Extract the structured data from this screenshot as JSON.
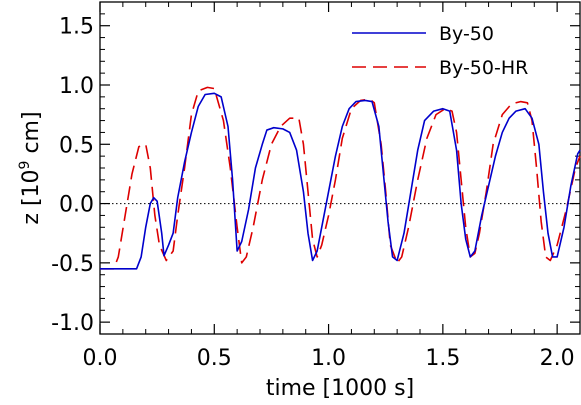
{
  "chart_data": {
    "type": "line",
    "xlabel": "time [1000 s]",
    "ylabel_prefix": "z [10",
    "ylabel_exp": "9",
    "ylabel_suffix": " cm]",
    "xlim": [
      0.0,
      2.1
    ],
    "ylim": [
      -1.1,
      1.7
    ],
    "x_ticks": [
      0.0,
      0.5,
      1.0,
      1.5,
      2.0
    ],
    "x_tick_labels": [
      "0.0",
      "0.5",
      "1.0",
      "1.5",
      "2.0"
    ],
    "y_ticks": [
      -1.0,
      -0.5,
      0.0,
      0.5,
      1.0,
      1.5
    ],
    "y_tick_labels": [
      "-1.0",
      "-0.5",
      "0.0",
      "0.5",
      "1.0",
      "1.5"
    ],
    "reference_line_y": 0.0,
    "legend_position": "top-right",
    "series": [
      {
        "name": "By-50",
        "color": "#0000cc",
        "dash": "solid",
        "points": [
          [
            0.0,
            -0.55
          ],
          [
            0.1,
            -0.55
          ],
          [
            0.16,
            -0.55
          ],
          [
            0.18,
            -0.45
          ],
          [
            0.2,
            -0.2
          ],
          [
            0.22,
            0.0
          ],
          [
            0.235,
            0.05
          ],
          [
            0.25,
            0.02
          ],
          [
            0.27,
            -0.25
          ],
          [
            0.28,
            -0.44
          ],
          [
            0.3,
            -0.35
          ],
          [
            0.32,
            -0.25
          ],
          [
            0.34,
            0.05
          ],
          [
            0.37,
            0.35
          ],
          [
            0.4,
            0.6
          ],
          [
            0.43,
            0.82
          ],
          [
            0.46,
            0.92
          ],
          [
            0.5,
            0.93
          ],
          [
            0.53,
            0.9
          ],
          [
            0.56,
            0.65
          ],
          [
            0.58,
            0.2
          ],
          [
            0.6,
            -0.4
          ],
          [
            0.62,
            -0.32
          ],
          [
            0.65,
            -0.05
          ],
          [
            0.68,
            0.3
          ],
          [
            0.71,
            0.5
          ],
          [
            0.73,
            0.62
          ],
          [
            0.76,
            0.64
          ],
          [
            0.8,
            0.63
          ],
          [
            0.83,
            0.6
          ],
          [
            0.86,
            0.45
          ],
          [
            0.89,
            0.1
          ],
          [
            0.91,
            -0.25
          ],
          [
            0.93,
            -0.48
          ],
          [
            0.95,
            -0.4
          ],
          [
            0.97,
            -0.2
          ],
          [
            1.0,
            0.1
          ],
          [
            1.03,
            0.4
          ],
          [
            1.06,
            0.65
          ],
          [
            1.09,
            0.8
          ],
          [
            1.12,
            0.86
          ],
          [
            1.16,
            0.87
          ],
          [
            1.19,
            0.86
          ],
          [
            1.22,
            0.65
          ],
          [
            1.24,
            0.25
          ],
          [
            1.26,
            -0.15
          ],
          [
            1.28,
            -0.45
          ],
          [
            1.3,
            -0.48
          ],
          [
            1.33,
            -0.25
          ],
          [
            1.36,
            0.1
          ],
          [
            1.39,
            0.45
          ],
          [
            1.42,
            0.7
          ],
          [
            1.46,
            0.78
          ],
          [
            1.5,
            0.8
          ],
          [
            1.53,
            0.78
          ],
          [
            1.56,
            0.45
          ],
          [
            1.58,
            0.0
          ],
          [
            1.6,
            -0.3
          ],
          [
            1.62,
            -0.45
          ],
          [
            1.64,
            -0.4
          ],
          [
            1.67,
            -0.1
          ],
          [
            1.7,
            0.15
          ],
          [
            1.73,
            0.4
          ],
          [
            1.76,
            0.6
          ],
          [
            1.79,
            0.72
          ],
          [
            1.82,
            0.78
          ],
          [
            1.86,
            0.8
          ],
          [
            1.89,
            0.72
          ],
          [
            1.92,
            0.5
          ],
          [
            1.94,
            0.1
          ],
          [
            1.96,
            -0.25
          ],
          [
            1.98,
            -0.45
          ],
          [
            2.0,
            -0.45
          ],
          [
            2.03,
            -0.2
          ],
          [
            2.06,
            0.15
          ],
          [
            2.09,
            0.42
          ],
          [
            2.1,
            0.45
          ]
        ]
      },
      {
        "name": "By-50-HR",
        "color": "#dd0000",
        "dash": "long-dash",
        "points": [
          [
            0.0,
            -0.55
          ],
          [
            0.06,
            -0.55
          ],
          [
            0.08,
            -0.45
          ],
          [
            0.11,
            -0.1
          ],
          [
            0.14,
            0.25
          ],
          [
            0.17,
            0.48
          ],
          [
            0.2,
            0.5
          ],
          [
            0.22,
            0.3
          ],
          [
            0.24,
            -0.1
          ],
          [
            0.26,
            -0.35
          ],
          [
            0.29,
            -0.48
          ],
          [
            0.32,
            -0.4
          ],
          [
            0.34,
            -0.1
          ],
          [
            0.37,
            0.3
          ],
          [
            0.4,
            0.75
          ],
          [
            0.43,
            0.95
          ],
          [
            0.47,
            0.98
          ],
          [
            0.5,
            0.97
          ],
          [
            0.54,
            0.7
          ],
          [
            0.57,
            0.3
          ],
          [
            0.6,
            -0.2
          ],
          [
            0.62,
            -0.5
          ],
          [
            0.64,
            -0.45
          ],
          [
            0.67,
            -0.2
          ],
          [
            0.71,
            0.2
          ],
          [
            0.75,
            0.5
          ],
          [
            0.79,
            0.65
          ],
          [
            0.83,
            0.72
          ],
          [
            0.87,
            0.72
          ],
          [
            0.89,
            0.5
          ],
          [
            0.91,
            0.1
          ],
          [
            0.93,
            -0.3
          ],
          [
            0.95,
            -0.45
          ],
          [
            0.97,
            -0.35
          ],
          [
            1.0,
            -0.1
          ],
          [
            1.03,
            0.2
          ],
          [
            1.06,
            0.55
          ],
          [
            1.1,
            0.8
          ],
          [
            1.14,
            0.87
          ],
          [
            1.18,
            0.88
          ],
          [
            1.2,
            0.85
          ],
          [
            1.23,
            0.5
          ],
          [
            1.25,
            0.1
          ],
          [
            1.27,
            -0.35
          ],
          [
            1.3,
            -0.5
          ],
          [
            1.32,
            -0.45
          ],
          [
            1.35,
            -0.2
          ],
          [
            1.39,
            0.2
          ],
          [
            1.43,
            0.55
          ],
          [
            1.47,
            0.75
          ],
          [
            1.51,
            0.8
          ],
          [
            1.54,
            0.78
          ],
          [
            1.56,
            0.6
          ],
          [
            1.58,
            0.2
          ],
          [
            1.6,
            -0.2
          ],
          [
            1.62,
            -0.45
          ],
          [
            1.64,
            -0.42
          ],
          [
            1.66,
            -0.25
          ],
          [
            1.69,
            0.1
          ],
          [
            1.72,
            0.5
          ],
          [
            1.76,
            0.75
          ],
          [
            1.8,
            0.84
          ],
          [
            1.84,
            0.86
          ],
          [
            1.87,
            0.85
          ],
          [
            1.89,
            0.7
          ],
          [
            1.91,
            0.3
          ],
          [
            1.93,
            -0.15
          ],
          [
            1.95,
            -0.45
          ],
          [
            1.97,
            -0.48
          ],
          [
            2.0,
            -0.35
          ],
          [
            2.04,
            -0.05
          ],
          [
            2.08,
            0.3
          ],
          [
            2.1,
            0.4
          ]
        ]
      }
    ]
  }
}
